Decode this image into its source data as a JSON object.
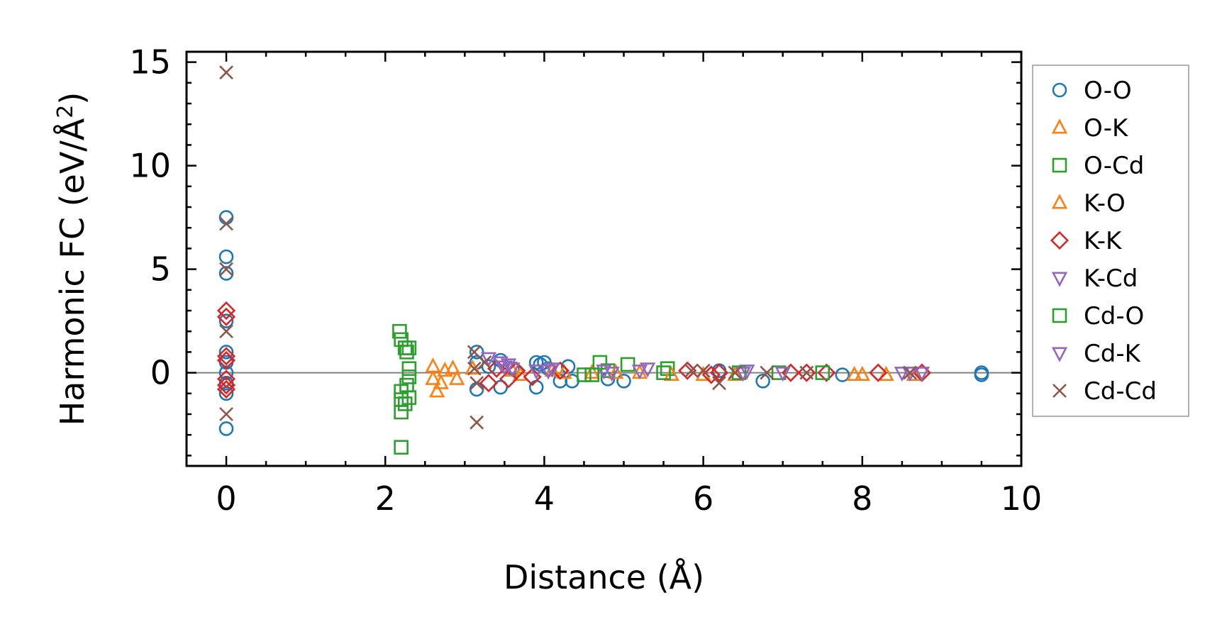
{
  "chart_data": {
    "type": "scatter",
    "title": "",
    "xlabel": "Distance (Å)",
    "ylabel": "Harmonic FC (eV/Å",
    "ylabel_superscript": "2",
    "ylabel_suffix": ")",
    "xlim": [
      -0.5,
      10
    ],
    "ylim": [
      -4.5,
      15.5
    ],
    "xticks": [
      0,
      2,
      4,
      6,
      8,
      10
    ],
    "yticks": [
      0,
      5,
      10,
      15
    ],
    "x_minor_step": 0.5,
    "y_minor_step": 1,
    "grid": false,
    "zero_line": true,
    "legend_position": "right",
    "series": [
      {
        "name": "O-O",
        "marker": "circle",
        "color": "#1f77b4",
        "points": [
          [
            0,
            7.5
          ],
          [
            0,
            5.6
          ],
          [
            0,
            4.8
          ],
          [
            0,
            2.5
          ],
          [
            0,
            1.0
          ],
          [
            0,
            0.5
          ],
          [
            0,
            0.0
          ],
          [
            0,
            -0.5
          ],
          [
            0,
            -1.0
          ],
          [
            0,
            -2.7
          ],
          [
            3.15,
            1.0
          ],
          [
            3.15,
            0.5
          ],
          [
            3.15,
            -0.8
          ],
          [
            3.3,
            0.3
          ],
          [
            3.45,
            0.6
          ],
          [
            3.45,
            -0.7
          ],
          [
            3.6,
            0.2
          ],
          [
            3.9,
            0.5
          ],
          [
            3.9,
            -0.7
          ],
          [
            3.95,
            0.4
          ],
          [
            4.0,
            0.5
          ],
          [
            4.05,
            0.2
          ],
          [
            4.2,
            -0.4
          ],
          [
            4.3,
            0.3
          ],
          [
            4.35,
            -0.4
          ],
          [
            4.8,
            -0.3
          ],
          [
            5.0,
            -0.4
          ],
          [
            6.2,
            0.1
          ],
          [
            6.75,
            -0.4
          ],
          [
            7.75,
            -0.1
          ],
          [
            9.5,
            0.0
          ],
          [
            9.5,
            -0.1
          ]
        ]
      },
      {
        "name": "O-K",
        "marker": "triangle-up",
        "color": "#ff7f0e",
        "points": [
          [
            2.6,
            0.3
          ],
          [
            2.6,
            -0.3
          ],
          [
            2.65,
            -0.9
          ],
          [
            2.7,
            -0.5
          ],
          [
            2.75,
            0.1
          ],
          [
            2.85,
            0.2
          ],
          [
            2.9,
            -0.3
          ],
          [
            3.6,
            0.1
          ],
          [
            4.1,
            0.1
          ],
          [
            4.6,
            0.0
          ],
          [
            5.2,
            0.0
          ],
          [
            6.0,
            -0.1
          ],
          [
            8.0,
            -0.1
          ],
          [
            8.3,
            -0.1
          ]
        ]
      },
      {
        "name": "O-Cd",
        "marker": "square",
        "color": "#2ca02c",
        "points": [
          [
            2.18,
            2.0
          ],
          [
            2.2,
            1.6
          ],
          [
            2.2,
            -0.9
          ],
          [
            2.2,
            -1.3
          ],
          [
            2.2,
            -1.9
          ],
          [
            2.2,
            -3.6
          ],
          [
            2.25,
            1.2
          ],
          [
            2.25,
            -1.5
          ],
          [
            2.27,
            1.0
          ],
          [
            2.27,
            -0.6
          ],
          [
            2.3,
            0.2
          ],
          [
            2.3,
            -1.2
          ],
          [
            2.3,
            1.2
          ],
          [
            2.3,
            -0.2
          ],
          [
            4.5,
            -0.1
          ],
          [
            4.7,
            0.5
          ],
          [
            4.8,
            0.1
          ],
          [
            5.05,
            0.4
          ],
          [
            5.55,
            0.2
          ],
          [
            6.95,
            0.0
          ]
        ]
      },
      {
        "name": "K-O",
        "marker": "triangle-up",
        "color": "#ff7f0e",
        "points": [
          [
            3.1,
            0.2
          ],
          [
            3.7,
            -0.1
          ],
          [
            4.25,
            0.0
          ],
          [
            4.9,
            0.0
          ],
          [
            5.6,
            -0.1
          ],
          [
            6.4,
            -0.1
          ],
          [
            7.9,
            -0.1
          ],
          [
            8.65,
            -0.1
          ]
        ]
      },
      {
        "name": "K-K",
        "marker": "diamond",
        "color": "#d62728",
        "points": [
          [
            0,
            3.0
          ],
          [
            0,
            2.7
          ],
          [
            0,
            0.8
          ],
          [
            0,
            0.6
          ],
          [
            0,
            -0.3
          ],
          [
            0,
            -0.6
          ],
          [
            0,
            -0.8
          ],
          [
            3.3,
            -0.5
          ],
          [
            3.4,
            0.2
          ],
          [
            3.55,
            -0.3
          ],
          [
            3.65,
            0.1
          ],
          [
            3.85,
            -0.2
          ],
          [
            4.2,
            0.1
          ],
          [
            5.8,
            0.1
          ],
          [
            6.1,
            -0.1
          ],
          [
            6.2,
            0.0
          ],
          [
            7.1,
            0.0
          ],
          [
            7.3,
            0.0
          ],
          [
            7.55,
            0.0
          ],
          [
            8.2,
            0.0
          ],
          [
            8.75,
            0.0
          ]
        ]
      },
      {
        "name": "K-Cd",
        "marker": "triangle-down",
        "color": "#9467bd",
        "points": [
          [
            3.3,
            0.7
          ],
          [
            3.45,
            0.5
          ],
          [
            3.5,
            0.3
          ],
          [
            3.6,
            0.2
          ],
          [
            3.9,
            0.1
          ],
          [
            4.1,
            0.2
          ],
          [
            4.75,
            0.1
          ],
          [
            4.85,
            0.0
          ],
          [
            5.3,
            0.2
          ],
          [
            6.55,
            0.1
          ],
          [
            7.0,
            0.0
          ],
          [
            8.6,
            0.0
          ],
          [
            8.75,
            0.0
          ]
        ]
      },
      {
        "name": "Cd-O",
        "marker": "square",
        "color": "#2ca02c",
        "points": [
          [
            4.6,
            -0.1
          ],
          [
            5.5,
            0.0
          ],
          [
            6.45,
            0.0
          ],
          [
            7.5,
            0.0
          ]
        ]
      },
      {
        "name": "Cd-K",
        "marker": "triangle-down",
        "color": "#9467bd",
        "points": [
          [
            3.55,
            0.4
          ],
          [
            4.05,
            0.1
          ],
          [
            5.2,
            0.1
          ],
          [
            6.5,
            0.0
          ],
          [
            8.5,
            0.0
          ]
        ]
      },
      {
        "name": "Cd-Cd",
        "marker": "x",
        "color": "#8c564b",
        "points": [
          [
            0,
            14.5
          ],
          [
            0,
            7.2
          ],
          [
            0,
            5.0
          ],
          [
            0,
            2.0
          ],
          [
            0,
            -2.0
          ],
          [
            3.12,
            1.0
          ],
          [
            3.12,
            0.2
          ],
          [
            3.15,
            -0.5
          ],
          [
            3.15,
            -2.4
          ],
          [
            3.25,
            0.5
          ],
          [
            5.85,
            0.1
          ],
          [
            6.0,
            0.1
          ],
          [
            6.2,
            -0.5
          ],
          [
            6.4,
            0.0
          ],
          [
            6.8,
            0.0
          ],
          [
            7.3,
            0.0
          ],
          [
            8.6,
            0.0
          ]
        ]
      }
    ]
  }
}
